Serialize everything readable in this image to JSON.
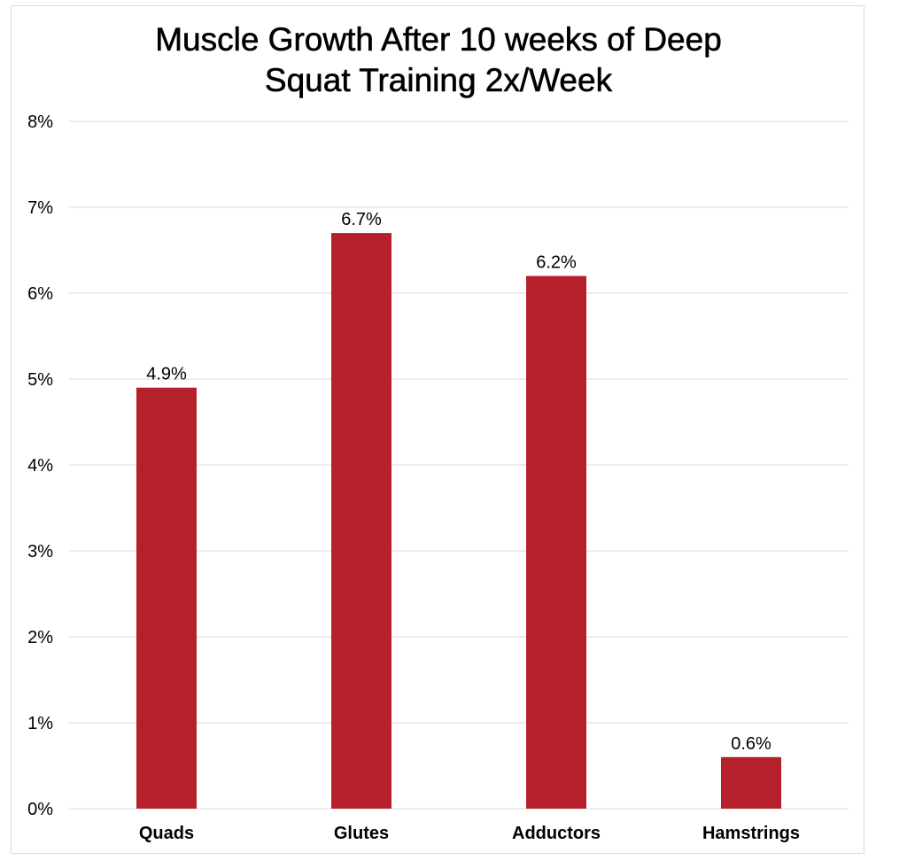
{
  "chart_data": {
    "type": "bar",
    "title_lines": [
      "Muscle Growth After 10 weeks of Deep",
      "Squat Training 2x/Week"
    ],
    "categories": [
      "Quads",
      "Glutes",
      "Adductors",
      "Hamstrings"
    ],
    "values": [
      4.9,
      6.7,
      6.2,
      0.6
    ],
    "data_labels": [
      "4.9%",
      "6.7%",
      "6.2%",
      "0.6%"
    ],
    "ylim": [
      0,
      8
    ],
    "y_ticks": [
      0,
      1,
      2,
      3,
      4,
      5,
      6,
      7,
      8
    ],
    "y_tick_labels": [
      "0%",
      "1%",
      "2%",
      "3%",
      "4%",
      "5%",
      "6%",
      "7%",
      "8%"
    ],
    "xlabel": "",
    "ylabel": "",
    "grid": true,
    "legend": "none",
    "bar_color": "#b5202a",
    "grid_color": "#d9d9d9"
  }
}
